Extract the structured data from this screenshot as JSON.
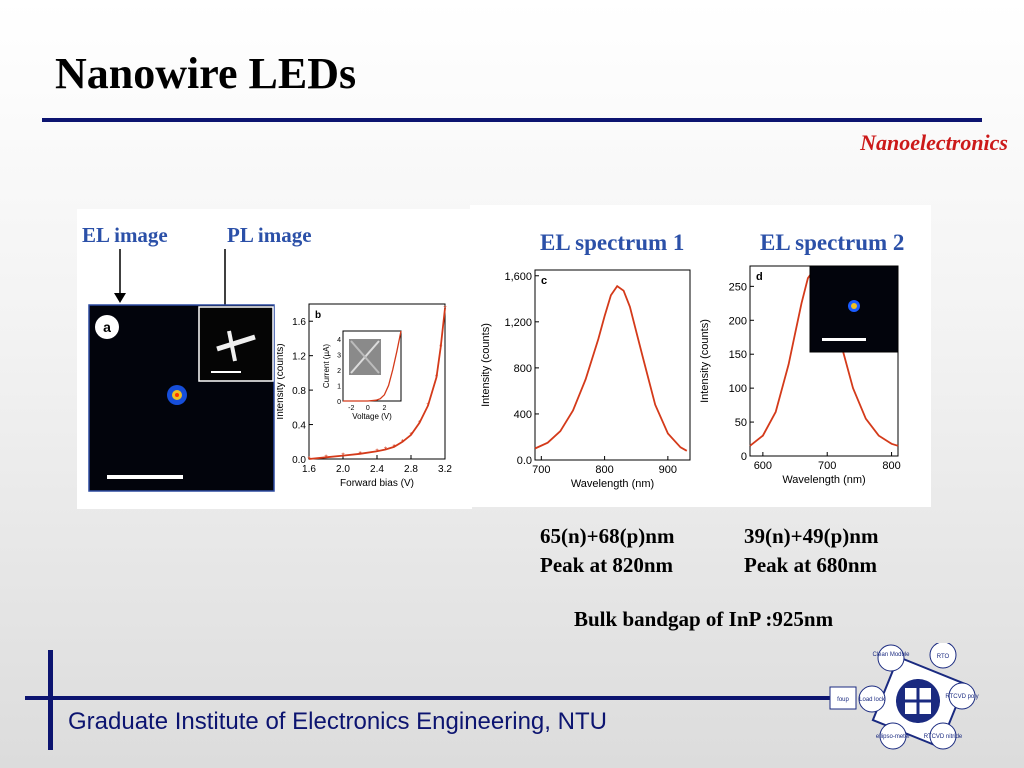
{
  "slide": {
    "title": "Nanowire LEDs",
    "subtitle": "Nanoelectronics",
    "footer": "Graduate Institute of Electronics Engineering, NTU"
  },
  "figure": {
    "el_image_label": "EL image",
    "pl_image_label": "PL image",
    "panel_a_tag": "a",
    "panel_b_tag": "b",
    "panel_c_tag": "c",
    "panel_d_tag": "d",
    "el_spectrum_1_label": "EL spectrum 1",
    "el_spectrum_2_label": "EL spectrum 2"
  },
  "captions": {
    "left_line1": "65(n)+68(p)nm",
    "left_line2": "Peak at 820nm",
    "right_line1": "39(n)+49(p)nm",
    "right_line2": "Peak at 680nm",
    "bulk": "Bulk bandgap of InP :925nm"
  },
  "process_diagram": {
    "nodes": [
      "Clean Module",
      "RTO",
      "Load lock",
      "RTCVD poly",
      "ellipso-meter",
      "RTCVD nitride",
      "foup"
    ]
  },
  "chart_data": [
    {
      "type": "line",
      "panel": "b",
      "xlabel": "Forward bias (V)",
      "ylabel": "Intensity (counts)",
      "xticks": [
        "1.6",
        "2.0",
        "2.4",
        "2.8",
        "3.2"
      ],
      "yticks": [
        "0.0",
        "0.4",
        "0.8",
        "1.2",
        "1.6"
      ],
      "xlim": [
        1.6,
        3.2
      ],
      "ylim": [
        0,
        1.8
      ],
      "x": [
        1.6,
        1.8,
        2.0,
        2.2,
        2.4,
        2.5,
        2.6,
        2.7,
        2.8,
        2.9,
        3.0,
        3.1,
        3.15,
        3.2
      ],
      "y": [
        0.0,
        0.02,
        0.04,
        0.06,
        0.09,
        0.11,
        0.14,
        0.2,
        0.28,
        0.42,
        0.62,
        0.95,
        1.3,
        1.75
      ],
      "inset": {
        "xlabel": "Voltage (V)",
        "ylabel": "Current (µA)",
        "xticks": [
          "-2",
          "0",
          "2"
        ],
        "yticks": [
          "0",
          "1",
          "2",
          "3",
          "4"
        ],
        "xlim": [
          -3,
          4
        ],
        "ylim": [
          0,
          4.5
        ],
        "x": [
          -3,
          -2,
          -1,
          0,
          1,
          1.5,
          2,
          2.5,
          3,
          3.5,
          4
        ],
        "y": [
          0,
          0,
          0,
          0,
          0.05,
          0.15,
          0.4,
          1.0,
          2.0,
          3.2,
          4.5
        ]
      }
    },
    {
      "type": "line",
      "panel": "c",
      "title": "EL spectrum 1",
      "xlabel": "Wavelength (nm)",
      "ylabel": "Intensity (counts)",
      "xticks": [
        "700",
        "800",
        "900"
      ],
      "yticks": [
        "0.0",
        "400",
        "800",
        "1,200",
        "1,600"
      ],
      "xlim": [
        690,
        935
      ],
      "ylim": [
        0,
        1650
      ],
      "x": [
        690,
        710,
        730,
        750,
        770,
        790,
        800,
        810,
        820,
        830,
        840,
        860,
        880,
        900,
        920,
        930
      ],
      "y": [
        100,
        150,
        250,
        430,
        700,
        1050,
        1250,
        1430,
        1510,
        1470,
        1330,
        900,
        480,
        230,
        110,
        80
      ]
    },
    {
      "type": "line",
      "panel": "d",
      "title": "EL spectrum 2",
      "xlabel": "Wavelength (nm)",
      "ylabel": "Intensity (counts)",
      "xticks": [
        "600",
        "700",
        "800"
      ],
      "yticks": [
        "0",
        "50",
        "100",
        "150",
        "200",
        "250"
      ],
      "xlim": [
        580,
        810
      ],
      "ylim": [
        0,
        280
      ],
      "x": [
        580,
        600,
        620,
        640,
        650,
        660,
        670,
        680,
        690,
        700,
        720,
        740,
        760,
        780,
        800,
        810
      ],
      "y": [
        15,
        30,
        65,
        135,
        180,
        225,
        262,
        275,
        265,
        240,
        170,
        100,
        55,
        30,
        18,
        15
      ]
    }
  ]
}
